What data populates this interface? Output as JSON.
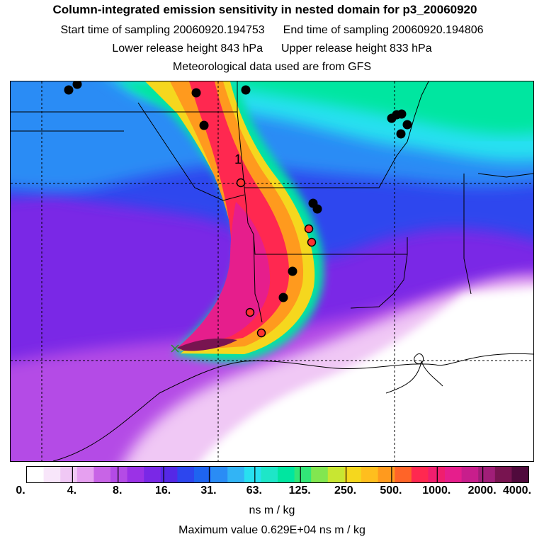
{
  "header": {
    "title": "Column-integrated emission sensitivity in nested domain for p3_20060920",
    "start_label": "Start time of sampling 20060920.194753",
    "end_label": "End time of sampling 20060920.194806",
    "lower_label": "Lower release height  843 hPa",
    "upper_label": "Upper release height  833 hPa",
    "met_label": "Meteorological data used are from GFS"
  },
  "map": {
    "marker_label": "1",
    "colors": {
      "white": "#ffffff",
      "lavender": "#f0c8f5",
      "violet": "#b44be6",
      "purple": "#7a28e6",
      "blue": "#2d46ee",
      "azure": "#2a8cf5",
      "cyan": "#28e0f0",
      "green": "#00e6a0",
      "yellow": "#f5d71e",
      "orange": "#ff9a1e",
      "red": "#ff2850",
      "magenta": "#e61e8c",
      "darkmagenta": "#781450"
    }
  },
  "colorbar": {
    "colors": [
      "#ffffff",
      "#f8e6fa",
      "#f0c8f5",
      "#e6a0f0",
      "#c864e6",
      "#b44be6",
      "#9b32e6",
      "#7a28e6",
      "#5528e6",
      "#2d46ee",
      "#1e64f0",
      "#2a8cf5",
      "#32b4f5",
      "#28e0f0",
      "#1ee6c8",
      "#00e6a0",
      "#32e678",
      "#82e650",
      "#c8e632",
      "#f5d71e",
      "#ffbe1e",
      "#ff9a1e",
      "#ff6428",
      "#ff2850",
      "#f01e6e",
      "#e61e8c",
      "#c81e8c",
      "#a01e78",
      "#781450",
      "#500a3c"
    ],
    "tick_labels": [
      "0.",
      "4.",
      "8.",
      "16.",
      "31.",
      "63.",
      "125.",
      "250.",
      "500.",
      "1000.",
      "2000.",
      "4000."
    ],
    "units": "ns m / kg"
  },
  "footer": {
    "max_value": "Maximum value  0.629E+04 ns m / kg"
  }
}
